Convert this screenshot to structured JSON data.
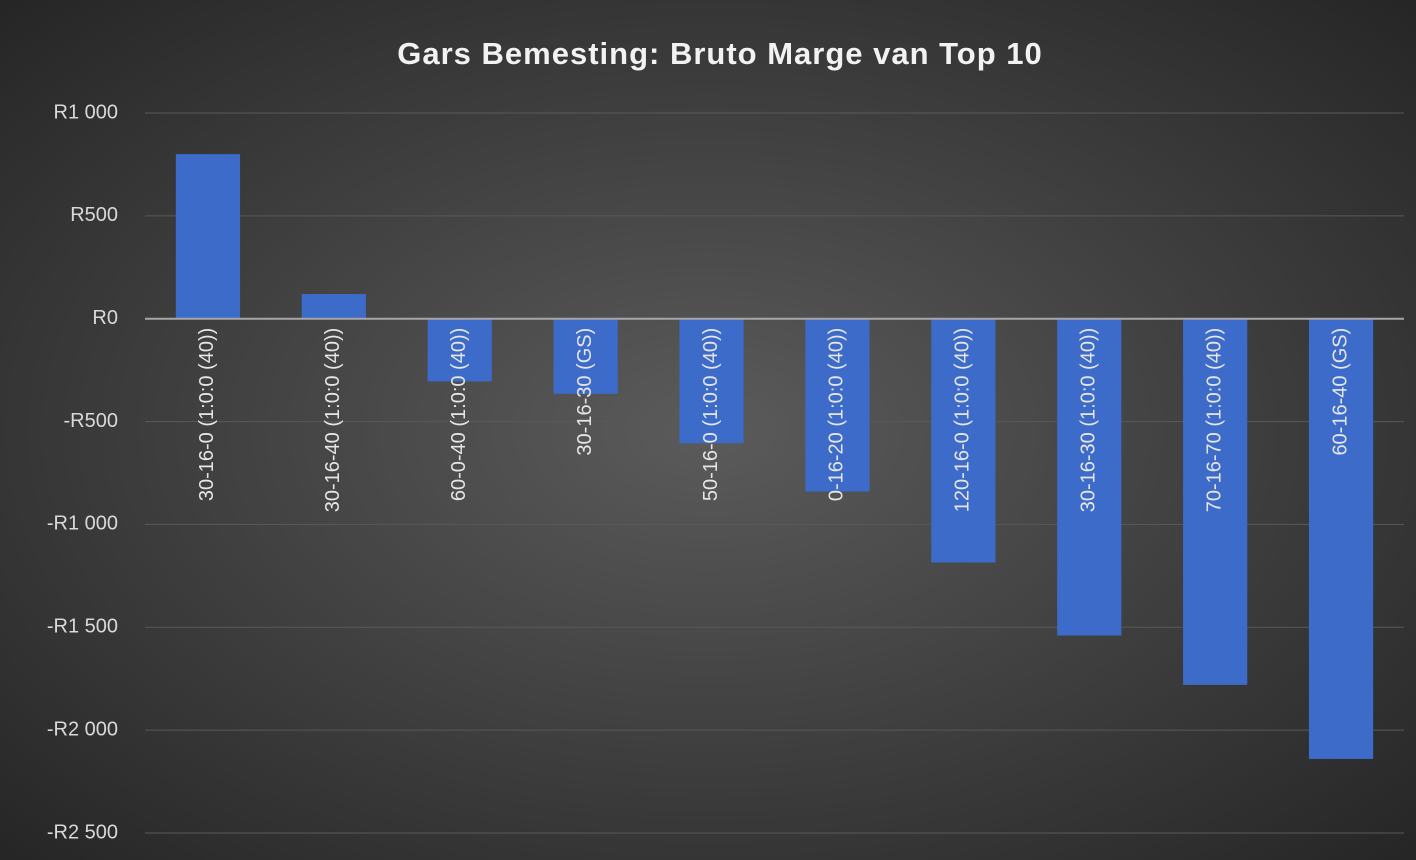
{
  "chart_data": {
    "type": "bar",
    "title": "Gars Bemesting: Bruto Marge van Top 10",
    "categories": [
      "30-16-0 (1:0:0 (40))",
      "30-16-40 (1:0:0 (40))",
      "60-0-40 (1:0:0 (40))",
      "30-16-30 (GS)",
      "50-16-0 (1:0:0 (40))",
      "0-16-20 (1:0:0 (40))",
      "120-16-0 (1:0:0 (40))",
      "30-16-30 (1:0:0 (40))",
      "70-16-70 (1:0:0 (40))",
      "60-16-40 (GS)"
    ],
    "values": [
      800,
      120,
      -305,
      -365,
      -605,
      -840,
      -1185,
      -1540,
      -1780,
      -2140
    ],
    "color": "#3d6bc9",
    "ylim": [
      -2500,
      1000
    ],
    "yticks": [
      {
        "value": -2500,
        "label": "-R2 500"
      },
      {
        "value": -2000,
        "label": "-R2 000"
      },
      {
        "value": -1500,
        "label": "-R1 500"
      },
      {
        "value": -1000,
        "label": "-R1 000"
      },
      {
        "value": -500,
        "label": "-R500"
      },
      {
        "value": 0,
        "label": "R0"
      },
      {
        "value": 500,
        "label": "R500"
      },
      {
        "value": 1000,
        "label": "R1 000"
      }
    ],
    "grid": true
  }
}
